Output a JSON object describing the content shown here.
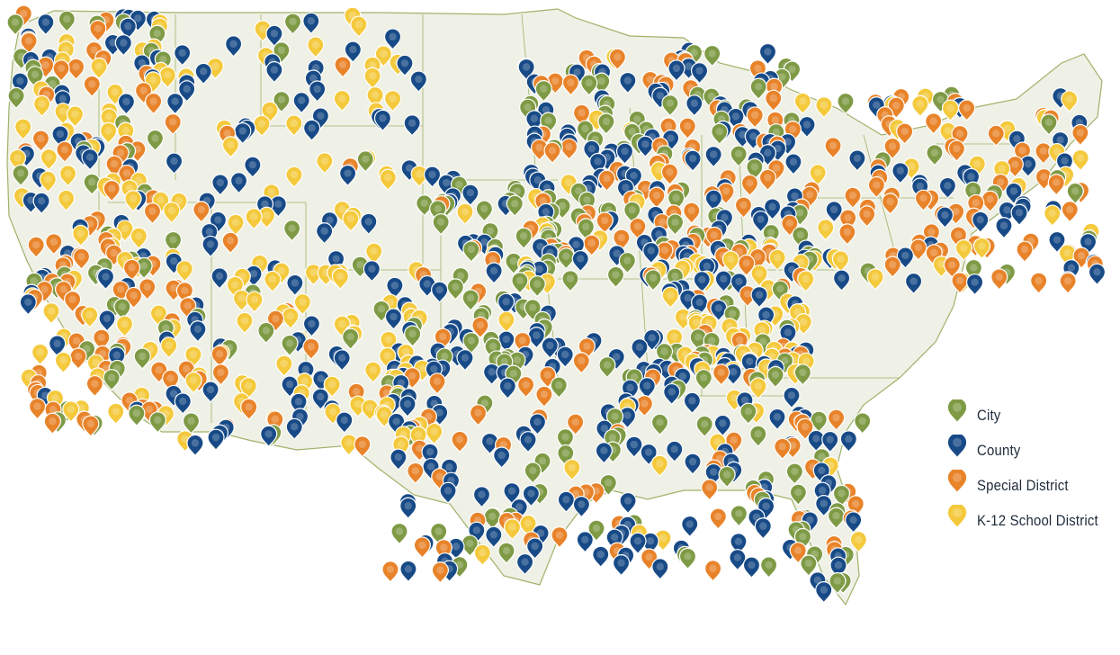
{
  "colors": {
    "land": "#eff0e6",
    "border": "#9fb36a",
    "city": "#7e9a45",
    "county": "#174a86",
    "special_district": "#e8832a",
    "school_district": "#f4c93c"
  },
  "legend": {
    "items": [
      {
        "key": "city",
        "label": "City",
        "color": "#7e9a45"
      },
      {
        "key": "county",
        "label": "County",
        "color": "#174a86"
      },
      {
        "key": "special_district",
        "label": "Special District",
        "color": "#e8832a"
      },
      {
        "key": "school_district",
        "label": "K-12 School District",
        "color": "#f4c93c"
      }
    ]
  },
  "marker_density": {
    "description_keys": [
      "city",
      "county",
      "special_district",
      "school_district"
    ],
    "regions": [
      {
        "name": "pacific-northwest",
        "mix": {
          "city": 0.15,
          "county": 0.3,
          "special_district": 0.2,
          "school_district": 0.35
        }
      },
      {
        "name": "california",
        "mix": {
          "city": 0.2,
          "county": 0.15,
          "special_district": 0.45,
          "school_district": 0.2
        }
      },
      {
        "name": "mountain-west",
        "mix": {
          "city": 0.05,
          "county": 0.45,
          "special_district": 0.05,
          "school_district": 0.45
        }
      },
      {
        "name": "southwest",
        "mix": {
          "city": 0.1,
          "county": 0.3,
          "special_district": 0.1,
          "school_district": 0.5
        }
      },
      {
        "name": "great-plains",
        "mix": {
          "city": 0.45,
          "county": 0.35,
          "special_district": 0.1,
          "school_district": 0.1
        }
      },
      {
        "name": "midwest",
        "mix": {
          "city": 0.3,
          "county": 0.35,
          "special_district": 0.3,
          "school_district": 0.05
        }
      },
      {
        "name": "south",
        "mix": {
          "city": 0.25,
          "county": 0.45,
          "special_district": 0.25,
          "school_district": 0.05
        }
      },
      {
        "name": "ohio-valley",
        "mix": {
          "city": 0.15,
          "county": 0.2,
          "special_district": 0.2,
          "school_district": 0.45
        }
      },
      {
        "name": "northeast",
        "mix": {
          "city": 0.15,
          "county": 0.3,
          "special_district": 0.35,
          "school_district": 0.2
        }
      },
      {
        "name": "florida",
        "mix": {
          "city": 0.3,
          "county": 0.3,
          "special_district": 0.35,
          "school_district": 0.05
        }
      }
    ]
  }
}
